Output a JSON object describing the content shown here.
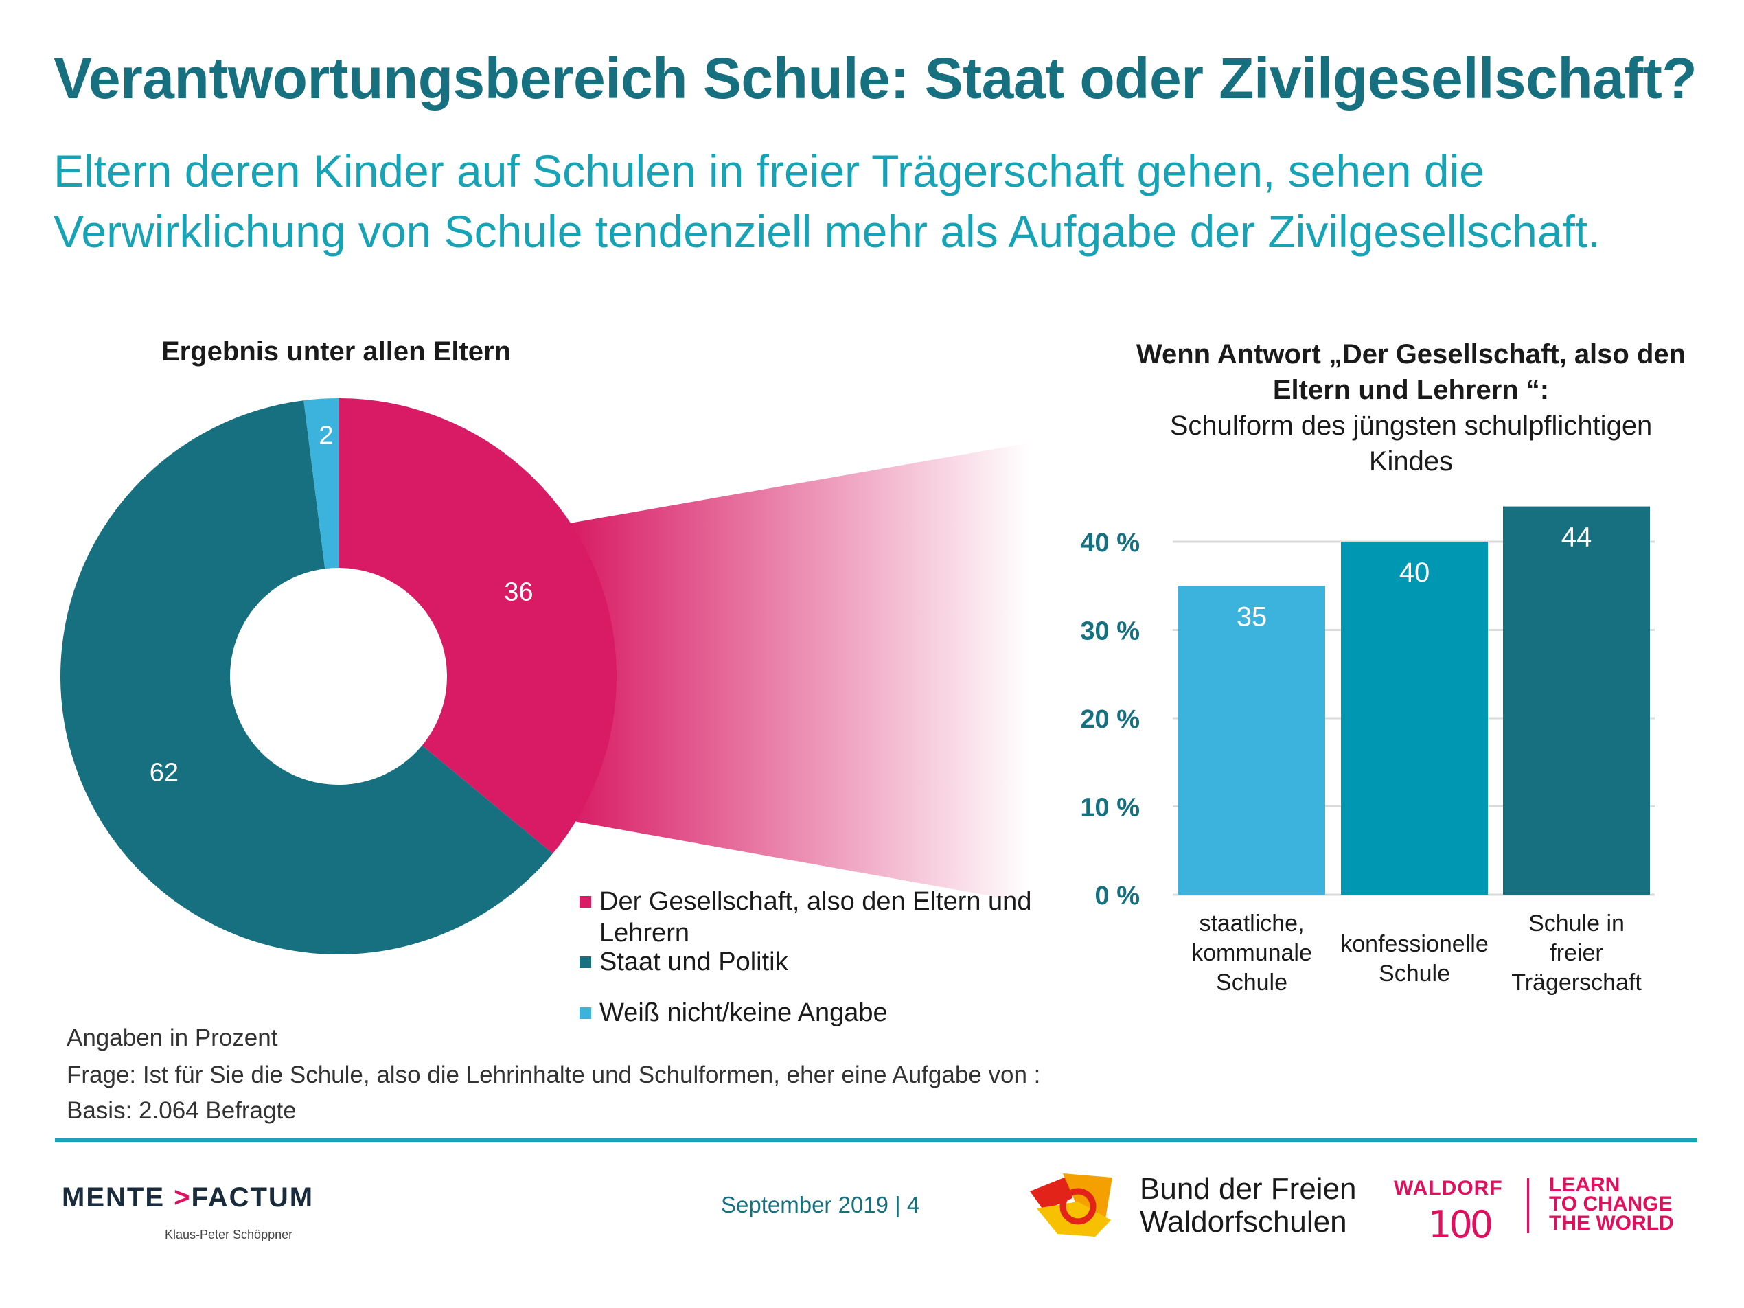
{
  "title": "Verantwortungsbereich Schule: Staat oder Zivilgesellschaft?",
  "subtitle_line1": "Eltern deren Kinder auf Schulen in freier Trägerschaft gehen, sehen die",
  "subtitle_line2": "Verwirklichung von Schule tendenziell mehr als Aufgabe der Zivilgesellschaft.",
  "left_panel_title": "Ergebnis unter allen Eltern",
  "right_panel_title_bold_1": "Wenn Antwort „Der Gesellschaft, also den",
  "right_panel_title_bold_2": "Eltern und Lehrern “:",
  "right_panel_title_normal_1": "Schulform des jüngsten schulpflichtigen",
  "right_panel_title_normal_2": "Kindes",
  "colors": {
    "accent_dark": "#16707f",
    "accent_light": "#16a3b5",
    "magenta": "#d81b64",
    "teal": "#16707f",
    "light_blue": "#3bb3dc",
    "mid_blue": "#0097b2"
  },
  "chart_data": [
    {
      "type": "pie",
      "variant": "donut",
      "title": "Ergebnis unter allen Eltern",
      "slices": [
        {
          "label": "Der Gesellschaft, also den Eltern und Lehrern",
          "value": 36,
          "color": "#d81b64"
        },
        {
          "label": "Staat und Politik",
          "value": 62,
          "color": "#16707f"
        },
        {
          "label": "Weiß nicht/keine Angabe",
          "value": 2,
          "color": "#3bb3dc"
        }
      ],
      "legend_position": "bottom-right"
    },
    {
      "type": "bar",
      "title": "Wenn Antwort „Der Gesellschaft, also den Eltern und Lehrern “: Schulform des jüngsten schulpflichtigen Kindes",
      "categories": [
        [
          "staatliche,",
          "kommunale",
          "Schule"
        ],
        [
          "konfessionelle",
          "Schule"
        ],
        [
          "Schule in",
          "freier",
          "Trägerschaft"
        ]
      ],
      "values": [
        35,
        40,
        44
      ],
      "colors": [
        "#3bb3dc",
        "#0097b2",
        "#16707f"
      ],
      "yticks": [
        "0 %",
        "10 %",
        "20 %",
        "30 %",
        "40 %"
      ],
      "ytick_values": [
        0,
        10,
        20,
        30,
        40
      ],
      "ylim": [
        0,
        44
      ],
      "grid": true
    }
  ],
  "footnotes": {
    "line1": "Angaben in Prozent",
    "line2": "Frage:   Ist für Sie die Schule, also die Lehrinhalte und Schulformen, eher eine Aufgabe von :",
    "line3": "Basis:   2.064 Befragte"
  },
  "footer": {
    "brand_left": "MENTE",
    "brand_arrow": ">",
    "brand_right": "FACTUM",
    "author": "Klaus-Peter Schöppner",
    "page_info": "September 2019 | 4",
    "bdfw_line1": "Bund der Freien",
    "bdfw_line2": "Waldorfschulen",
    "waldorf_word": "WALDORF",
    "waldorf_number": "100",
    "slogan_1": "LEARN",
    "slogan_2": "TO CHANGE",
    "slogan_3": "THE WORLD"
  }
}
